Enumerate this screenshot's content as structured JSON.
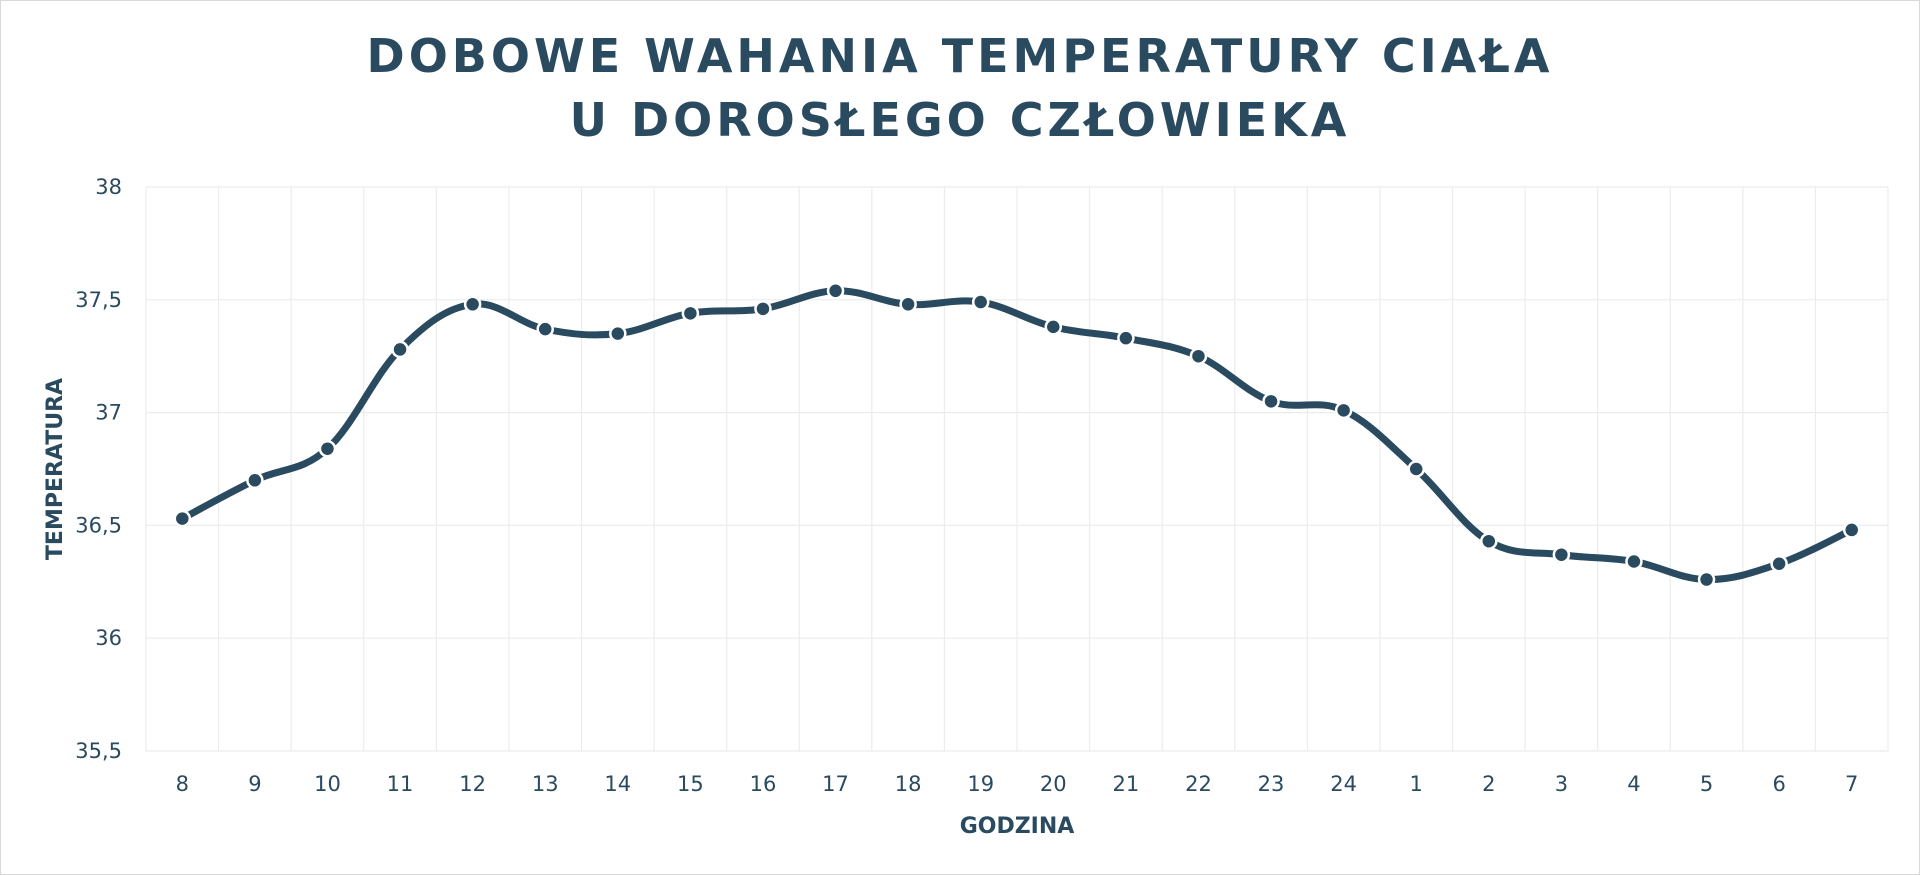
{
  "chart_data": {
    "type": "line",
    "title": "DOBOWE WAHANIA TEMPERATURY CIAŁA",
    "subtitle": "U DOROSŁEGO CZŁOWIEKA",
    "xlabel": "GODZINA",
    "ylabel": "TEMPERATURA",
    "categories": [
      "8",
      "9",
      "10",
      "11",
      "12",
      "13",
      "14",
      "15",
      "16",
      "17",
      "18",
      "19",
      "20",
      "21",
      "22",
      "23",
      "24",
      "1",
      "2",
      "3",
      "4",
      "5",
      "6",
      "7"
    ],
    "values": [
      36.53,
      36.7,
      36.84,
      37.28,
      37.48,
      37.37,
      37.35,
      37.44,
      37.46,
      37.54,
      37.48,
      37.49,
      37.38,
      37.33,
      37.25,
      37.05,
      37.01,
      36.75,
      36.43,
      36.37,
      36.34,
      36.26,
      36.33,
      36.48
    ],
    "ylim": [
      35.5,
      38
    ],
    "yticks": [
      35.5,
      36,
      36.5,
      37,
      37.5,
      38
    ],
    "ytick_labels": [
      "35,5",
      "36",
      "36,5",
      "37",
      "37,5",
      "38"
    ],
    "grid": true,
    "smooth": true,
    "colors": {
      "line": "#2a4a60",
      "marker_stroke": "#ffffff",
      "grid": "#ececec",
      "text": "#2a4a60"
    }
  }
}
